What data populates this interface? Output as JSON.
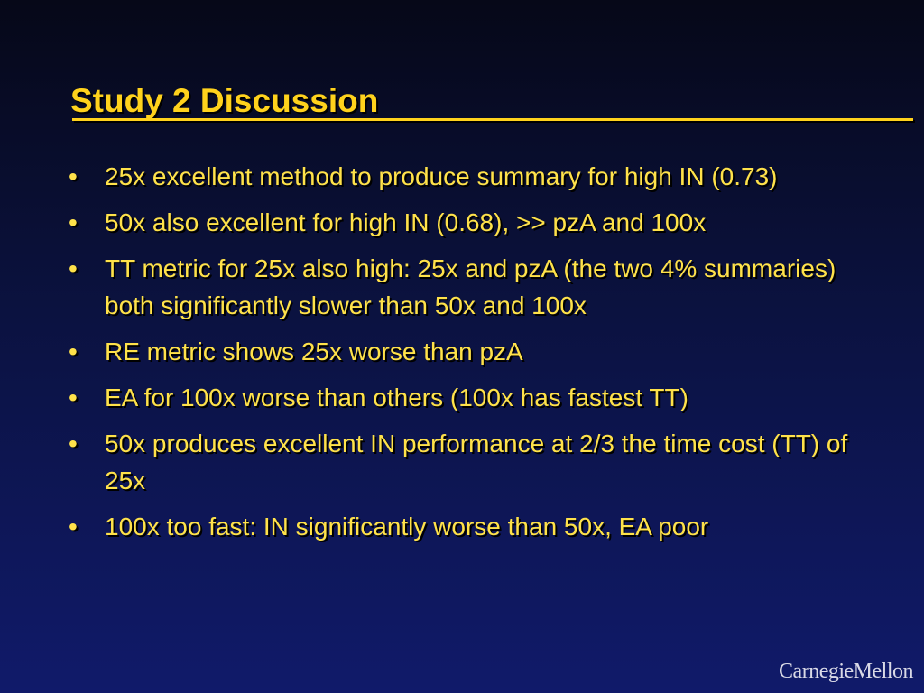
{
  "slide": {
    "title": "Study 2 Discussion",
    "bullet_glyph": "•",
    "bullets": [
      "25x excellent method to produce summary for high IN (0.73)",
      "50x also excellent for high IN (0.68), >> pzA and 100x",
      "TT metric for 25x also high:  25x and pzA (the two 4% summaries) both significantly slower than 50x and 100x",
      "RE metric shows 25x worse than pzA",
      "EA for 100x worse than others (100x has fastest TT)",
      "50x produces excellent IN performance at 2/3 the time cost (TT) of 25x",
      "100x too fast: IN significantly worse than 50x, EA poor"
    ],
    "logo_text": "CarnegieMellon"
  },
  "colors": {
    "title": "#ffd21c",
    "body_text": "#ffe24a",
    "background_top": "#060818",
    "background_bottom": "#101a6a",
    "logo": "#d9d9e6"
  }
}
